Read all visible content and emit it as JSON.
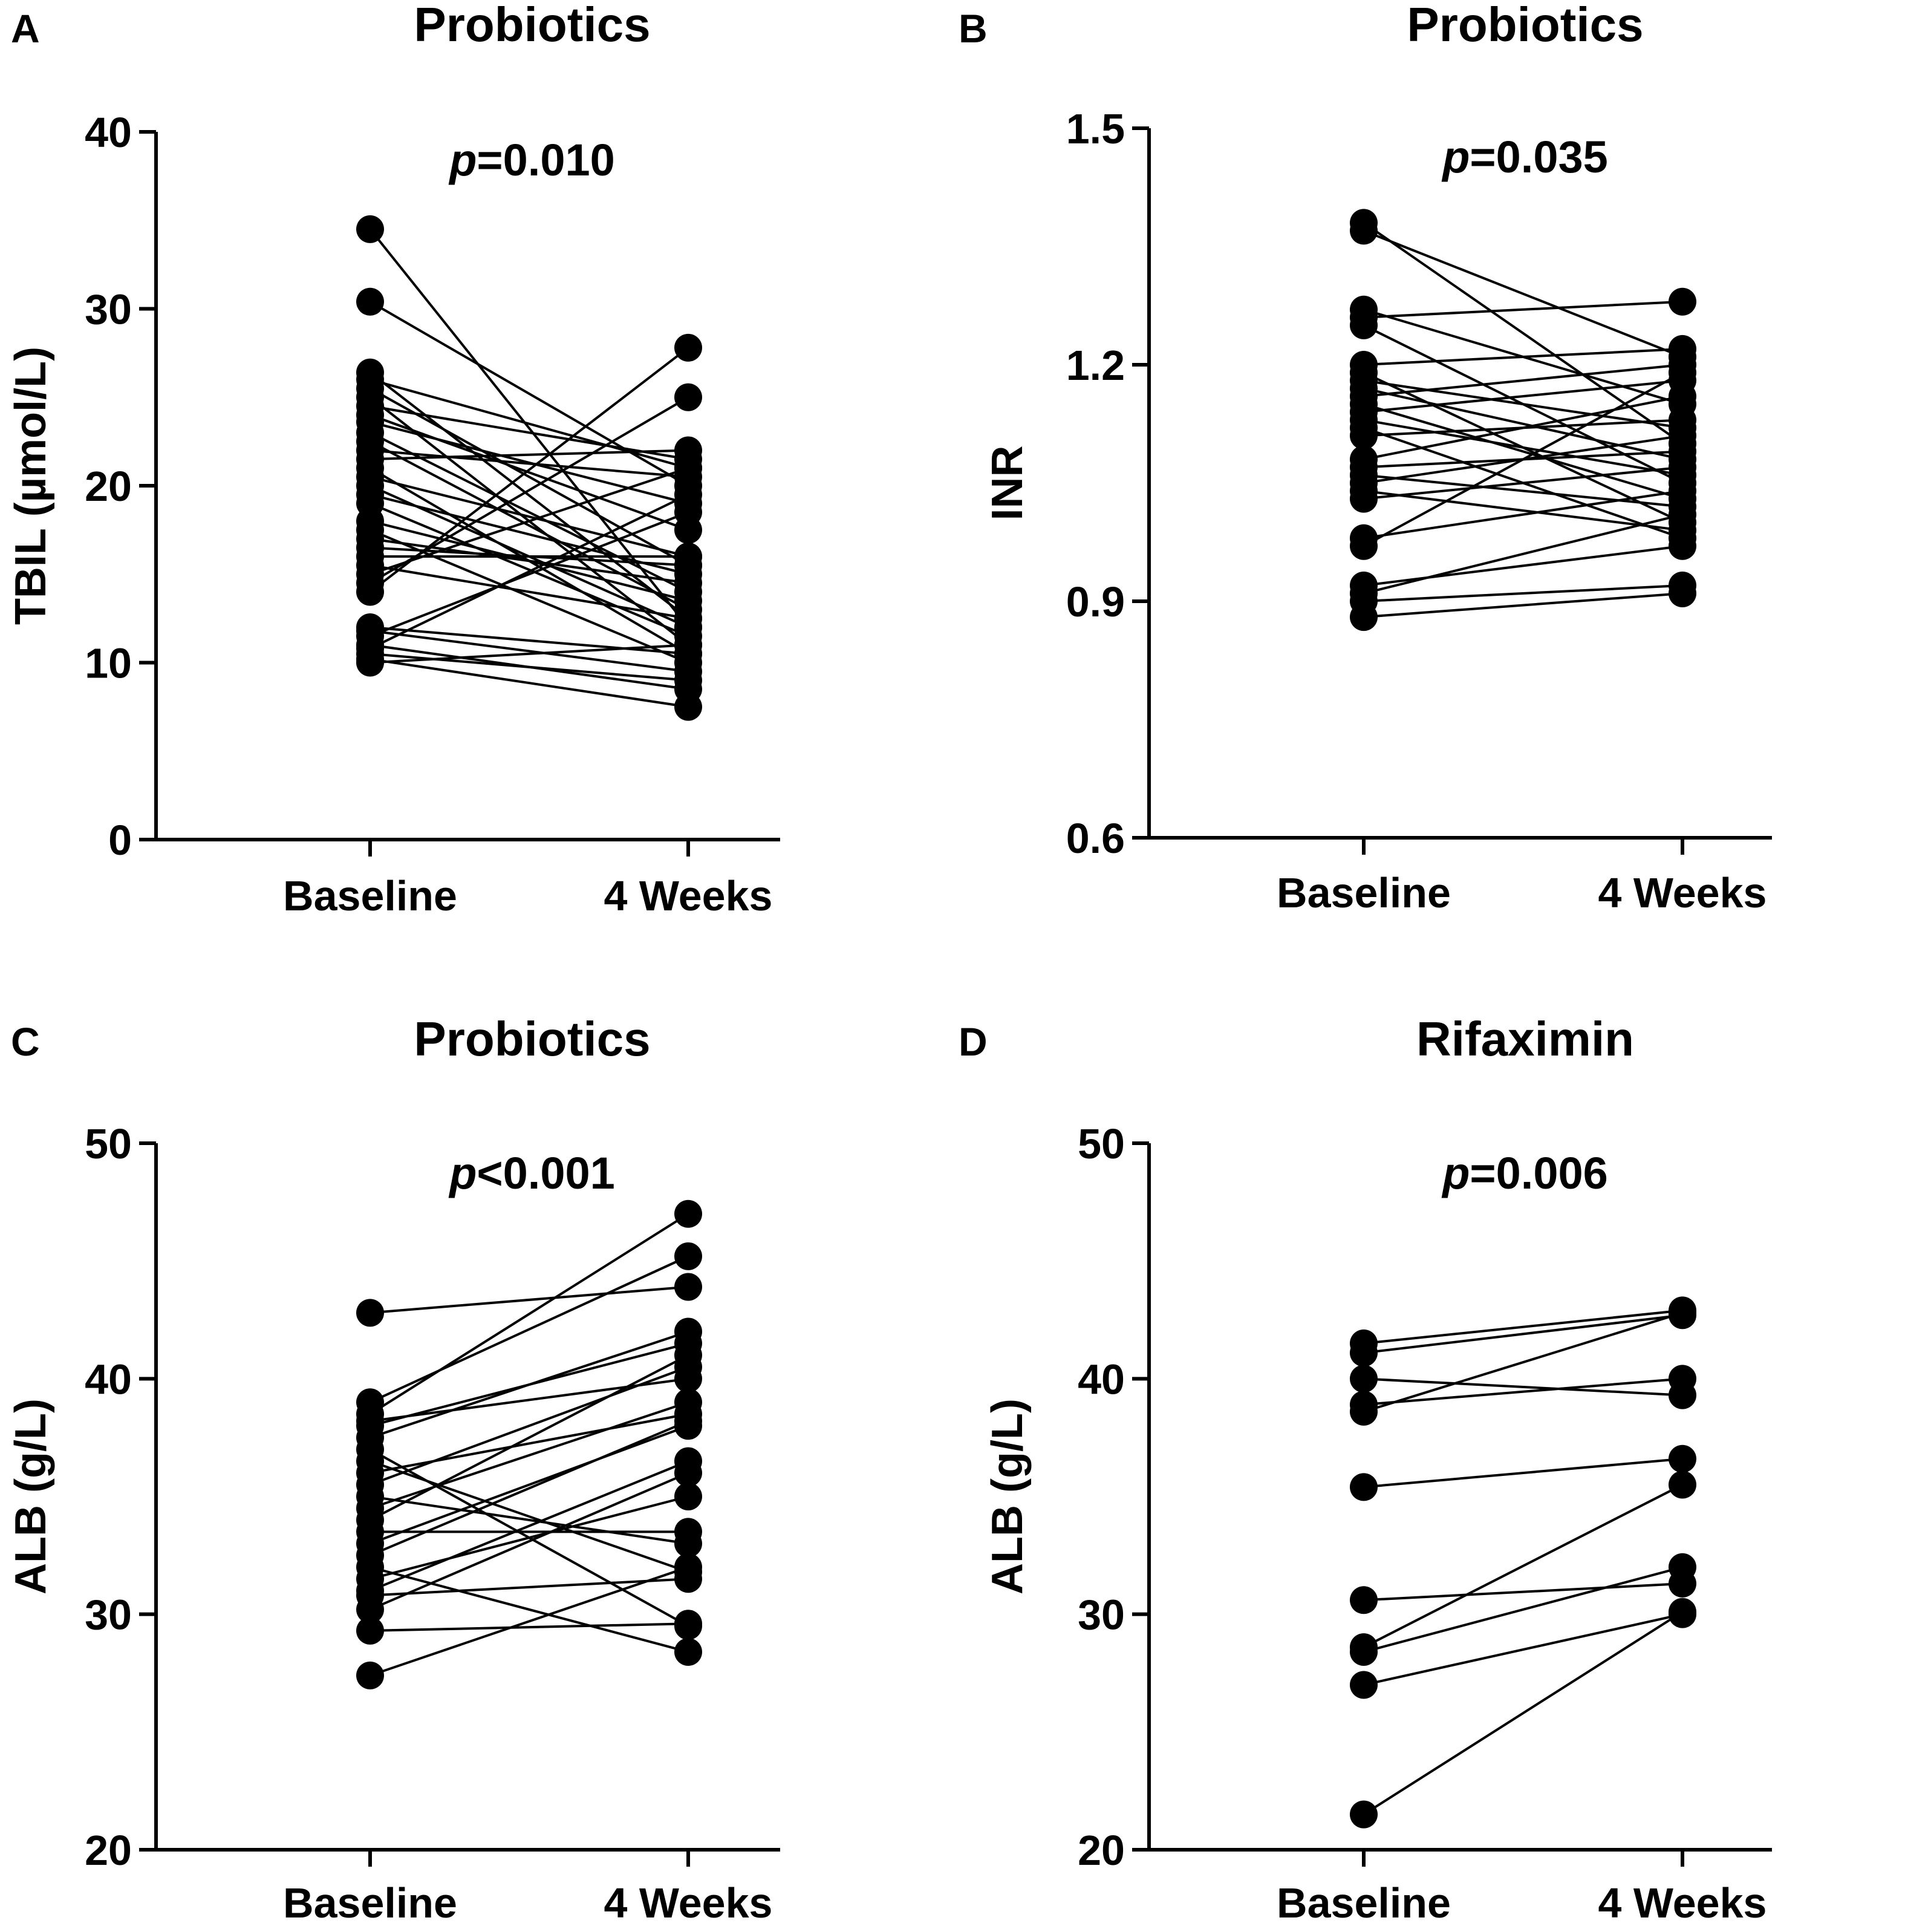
{
  "chart_data": [
    {
      "type": "line",
      "panel": "A",
      "title": "Probiotics",
      "annotation": {
        "italic": "p",
        "rest": "=0.010"
      },
      "xlabel": "",
      "ylabel": "TBIL (µmol/L)",
      "categories": [
        "Baseline",
        "4 Weeks"
      ],
      "ylim": [
        0,
        40
      ],
      "yticks": [
        0,
        10,
        20,
        30,
        40
      ],
      "pairs": [
        [
          34.5,
          12.0
        ],
        [
          30.4,
          20.0
        ],
        [
          26.4,
          12.5
        ],
        [
          26.0,
          21.0
        ],
        [
          25.5,
          15.5
        ],
        [
          25.0,
          11.0
        ],
        [
          24.5,
          21.5
        ],
        [
          24.0,
          17.5
        ],
        [
          23.6,
          19.0
        ],
        [
          23.0,
          14.0
        ],
        [
          22.5,
          13.0
        ],
        [
          22.0,
          20.5
        ],
        [
          21.5,
          22.0
        ],
        [
          21.0,
          10.5
        ],
        [
          20.5,
          16.0
        ],
        [
          20.0,
          12.0
        ],
        [
          19.5,
          15.0
        ],
        [
          19.0,
          11.5
        ],
        [
          18.0,
          13.5
        ],
        [
          17.5,
          10.0
        ],
        [
          17.0,
          14.5
        ],
        [
          16.5,
          15.5
        ],
        [
          16.0,
          16.0
        ],
        [
          15.5,
          12.5
        ],
        [
          15.0,
          21.0
        ],
        [
          14.5,
          25.0
        ],
        [
          14.0,
          27.8
        ],
        [
          12.0,
          10.5
        ],
        [
          11.8,
          9.5
        ],
        [
          11.5,
          18.5
        ],
        [
          11.0,
          8.5
        ],
        [
          10.8,
          19.5
        ],
        [
          10.5,
          9.0
        ],
        [
          10.2,
          7.5
        ],
        [
          10.0,
          11.0
        ]
      ]
    },
    {
      "type": "line",
      "panel": "B",
      "title": "Probiotics",
      "annotation": {
        "italic": "p",
        "rest": "=0.035"
      },
      "xlabel": "",
      "ylabel": "INR",
      "categories": [
        "Baseline",
        "4 Weeks"
      ],
      "ylim": [
        0.6,
        1.5
      ],
      "yticks": [
        0.6,
        0.9,
        1.2,
        1.5
      ],
      "ytick_labels": [
        "0.6",
        "0.9",
        "1.2",
        "1.5"
      ],
      "pairs": [
        [
          1.38,
          1.1
        ],
        [
          1.37,
          1.21
        ],
        [
          1.27,
          1.15
        ],
        [
          1.26,
          1.28
        ],
        [
          1.25,
          1.05
        ],
        [
          1.2,
          1.22
        ],
        [
          1.19,
          1.0
        ],
        [
          1.18,
          1.12
        ],
        [
          1.17,
          1.08
        ],
        [
          1.16,
          1.2
        ],
        [
          1.15,
          1.03
        ],
        [
          1.14,
          1.18
        ],
        [
          1.13,
          1.06
        ],
        [
          1.12,
          0.98
        ],
        [
          1.11,
          1.13
        ],
        [
          1.08,
          1.16
        ],
        [
          1.07,
          1.09
        ],
        [
          1.06,
          1.02
        ],
        [
          1.05,
          1.11
        ],
        [
          1.04,
          0.99
        ],
        [
          1.03,
          1.07
        ],
        [
          0.98,
          1.04
        ],
        [
          0.97,
          1.19
        ],
        [
          0.92,
          0.97
        ],
        [
          0.91,
          1.01
        ],
        [
          0.9,
          0.92
        ],
        [
          0.88,
          0.91
        ]
      ]
    },
    {
      "type": "line",
      "panel": "C",
      "title": "Probiotics",
      "annotation": {
        "italic": "p",
        "rest": "<0.001"
      },
      "xlabel": "",
      "ylabel": "ALB (g/L)",
      "categories": [
        "Baseline",
        "4 Weeks"
      ],
      "ylim": [
        20,
        50
      ],
      "yticks": [
        20,
        30,
        40,
        50
      ],
      "pairs": [
        [
          42.8,
          43.9
        ],
        [
          39.0,
          45.2
        ],
        [
          38.5,
          47.0
        ],
        [
          38.2,
          40.0
        ],
        [
          38.0,
          41.5
        ],
        [
          37.5,
          42.0
        ],
        [
          37.0,
          29.5
        ],
        [
          36.5,
          31.8
        ],
        [
          36.0,
          38.5
        ],
        [
          35.5,
          40.5
        ],
        [
          35.0,
          33.0
        ],
        [
          34.5,
          39.0
        ],
        [
          34.0,
          41.0
        ],
        [
          33.5,
          33.5
        ],
        [
          33.0,
          38.0
        ],
        [
          32.5,
          38.2
        ],
        [
          32.0,
          28.4
        ],
        [
          31.5,
          35.0
        ],
        [
          31.0,
          36.5
        ],
        [
          30.8,
          31.5
        ],
        [
          30.2,
          36.0
        ],
        [
          29.3,
          29.6
        ],
        [
          27.4,
          32.0
        ]
      ]
    },
    {
      "type": "line",
      "panel": "D",
      "title": "Rifaximin",
      "annotation": {
        "italic": "p",
        "rest": "=0.006"
      },
      "xlabel": "",
      "ylabel": "ALB (g/L)",
      "categories": [
        "Baseline",
        "4 Weeks"
      ],
      "ylim": [
        20,
        50
      ],
      "yticks": [
        20,
        30,
        40,
        50
      ],
      "pairs": [
        [
          41.5,
          42.9
        ],
        [
          41.1,
          42.7
        ],
        [
          40.0,
          39.3
        ],
        [
          38.9,
          40.0
        ],
        [
          38.6,
          42.8
        ],
        [
          35.4,
          36.6
        ],
        [
          30.6,
          31.3
        ],
        [
          28.6,
          35.5
        ],
        [
          28.4,
          32.0
        ],
        [
          27.0,
          30.0
        ],
        [
          21.5,
          30.1
        ]
      ]
    }
  ]
}
